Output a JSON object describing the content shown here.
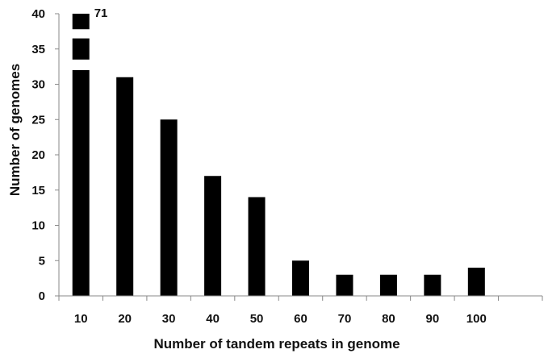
{
  "chart_data": {
    "type": "bar",
    "title": "",
    "xlabel": "Number of tandem repeats in genome",
    "ylabel": "Number of genomes",
    "categories": [
      "10",
      "20",
      "30",
      "40",
      "50",
      "60",
      "70",
      "80",
      "90",
      "100"
    ],
    "values": [
      71,
      31,
      25,
      17,
      14,
      5,
      3,
      3,
      3,
      4
    ],
    "ylim": [
      0,
      40
    ],
    "yticks": [
      "0",
      "5",
      "10",
      "15",
      "20",
      "25",
      "30",
      "35",
      "40"
    ],
    "axis_break": {
      "category": "10",
      "shown_value": "71"
    },
    "bar_color": "#000000",
    "grid": false,
    "legend": "none"
  }
}
